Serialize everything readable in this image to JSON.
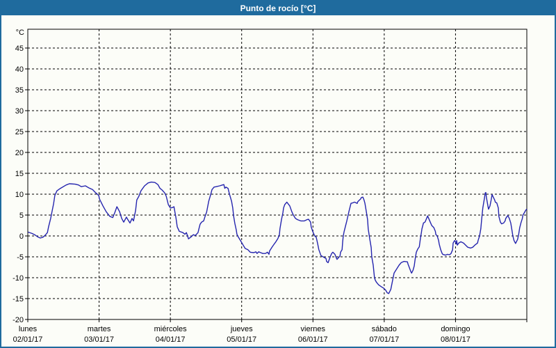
{
  "title": "Punto de rocío [°C]",
  "colors": {
    "titlebar": "#1f6b9e",
    "border": "#1f6b9e",
    "background": "#fcfdf8",
    "grid": "#000000",
    "frame": "#000000",
    "line": "#2424ae",
    "title_text": "#ffffff",
    "axis_text": "#000000"
  },
  "chart_data": {
    "type": "line",
    "title": "Punto de rocío [°C]",
    "y_unit_label": "°C",
    "ylabel": "",
    "xlabel": "",
    "ylim": [
      -20,
      49.5
    ],
    "y_tick_step": 5,
    "y_ticks": [
      45,
      40,
      35,
      30,
      25,
      20,
      15,
      10,
      5,
      0,
      -5,
      -10,
      -15,
      -20
    ],
    "grid": "dashed",
    "legend": "none",
    "x_range_hours": [
      0,
      168
    ],
    "hours_per_day": 24,
    "x_days": [
      {
        "name": "lunes",
        "date": "02/01/17"
      },
      {
        "name": "martes",
        "date": "03/01/17"
      },
      {
        "name": "miércoles",
        "date": "04/01/17"
      },
      {
        "name": "jueves",
        "date": "05/01/17"
      },
      {
        "name": "viernes",
        "date": "06/01/17"
      },
      {
        "name": "sábado",
        "date": "07/01/17"
      },
      {
        "name": "domingo",
        "date": "08/01/17"
      }
    ],
    "series": [
      {
        "name": "Punto de rocío",
        "color": "#2424ae",
        "points": [
          [
            0.2,
            0.9
          ],
          [
            1.4,
            0.6
          ],
          [
            2.3,
            0.3
          ],
          [
            3.3,
            -0.2
          ],
          [
            4.2,
            -0.5
          ],
          [
            5.1,
            -0.3
          ],
          [
            5.9,
            0.2
          ],
          [
            6.6,
            0.8
          ],
          [
            7.0,
            2.2
          ],
          [
            7.7,
            4.2
          ],
          [
            8.7,
            7.8
          ],
          [
            9.1,
            9.7
          ],
          [
            9.8,
            10.8
          ],
          [
            11.0,
            11.4
          ],
          [
            12.9,
            12.2
          ],
          [
            14.0,
            12.5
          ],
          [
            15.9,
            12.4
          ],
          [
            17.1,
            12.2
          ],
          [
            18.0,
            11.8
          ],
          [
            19.4,
            12.0
          ],
          [
            20.6,
            11.5
          ],
          [
            21.8,
            11.1
          ],
          [
            22.9,
            10.3
          ],
          [
            23.9,
            9.7
          ],
          [
            24.1,
            8.9
          ],
          [
            25.3,
            7.2
          ],
          [
            26.4,
            5.8
          ],
          [
            27.6,
            4.7
          ],
          [
            28.6,
            4.4
          ],
          [
            29.3,
            5.6
          ],
          [
            30.0,
            7.0
          ],
          [
            30.9,
            5.8
          ],
          [
            31.6,
            4.2
          ],
          [
            32.3,
            3.3
          ],
          [
            33.2,
            4.5
          ],
          [
            33.7,
            3.9
          ],
          [
            34.4,
            3.1
          ],
          [
            35.1,
            4.2
          ],
          [
            35.6,
            3.6
          ],
          [
            36.3,
            6.1
          ],
          [
            36.7,
            8.6
          ],
          [
            37.4,
            9.5
          ],
          [
            38.1,
            10.8
          ],
          [
            39.3,
            12.0
          ],
          [
            40.5,
            12.7
          ],
          [
            41.6,
            12.9
          ],
          [
            42.8,
            12.8
          ],
          [
            43.8,
            12.3
          ],
          [
            44.5,
            11.4
          ],
          [
            45.2,
            11.0
          ],
          [
            46.1,
            10.3
          ],
          [
            46.6,
            9.5
          ],
          [
            47.3,
            7.5
          ],
          [
            48.0,
            6.7
          ],
          [
            48.7,
            6.8
          ],
          [
            49.2,
            7.0
          ],
          [
            49.9,
            4.2
          ],
          [
            50.3,
            2.2
          ],
          [
            51.0,
            1.1
          ],
          [
            52.2,
            0.8
          ],
          [
            52.9,
            0.4
          ],
          [
            53.4,
            0.8
          ],
          [
            53.8,
            0.0
          ],
          [
            54.1,
            -0.7
          ],
          [
            55.0,
            -0.2
          ],
          [
            55.7,
            0.3
          ],
          [
            56.4,
            0.1
          ],
          [
            57.3,
            0.8
          ],
          [
            57.6,
            1.7
          ],
          [
            58.0,
            2.8
          ],
          [
            58.5,
            3.3
          ],
          [
            59.2,
            3.6
          ],
          [
            59.7,
            4.7
          ],
          [
            60.2,
            5.7
          ],
          [
            60.9,
            8.3
          ],
          [
            61.6,
            10.0
          ],
          [
            62.0,
            11.1
          ],
          [
            62.7,
            11.7
          ],
          [
            63.4,
            11.8
          ],
          [
            64.6,
            12.0
          ],
          [
            65.5,
            12.2
          ],
          [
            66.0,
            12.3
          ],
          [
            66.3,
            11.4
          ],
          [
            66.7,
            11.7
          ],
          [
            67.4,
            11.4
          ],
          [
            67.9,
            10.0
          ],
          [
            68.6,
            8.3
          ],
          [
            69.0,
            6.7
          ],
          [
            69.3,
            4.7
          ],
          [
            69.7,
            3.0
          ],
          [
            70.2,
            1.4
          ],
          [
            70.4,
            0.4
          ],
          [
            70.9,
            -0.3
          ],
          [
            71.6,
            -1.1
          ],
          [
            72.5,
            -2.2
          ],
          [
            73.2,
            -3.0
          ],
          [
            74.1,
            -3.3
          ],
          [
            74.9,
            -3.9
          ],
          [
            76.1,
            -4.0
          ],
          [
            76.8,
            -3.8
          ],
          [
            77.2,
            -4.2
          ],
          [
            77.7,
            -3.8
          ],
          [
            78.4,
            -4.0
          ],
          [
            79.1,
            -4.2
          ],
          [
            80.0,
            -4.2
          ],
          [
            80.7,
            -3.9
          ],
          [
            81.2,
            -4.4
          ],
          [
            81.4,
            -3.6
          ],
          [
            82.3,
            -2.6
          ],
          [
            83.0,
            -1.9
          ],
          [
            83.5,
            -1.4
          ],
          [
            84.2,
            -0.6
          ],
          [
            84.7,
            0.3
          ],
          [
            84.9,
            1.7
          ],
          [
            85.4,
            3.9
          ],
          [
            85.9,
            5.6
          ],
          [
            86.1,
            6.7
          ],
          [
            86.5,
            7.5
          ],
          [
            87.2,
            8.1
          ],
          [
            88.2,
            7.2
          ],
          [
            88.9,
            5.8
          ],
          [
            89.4,
            5.0
          ],
          [
            90.1,
            4.2
          ],
          [
            90.8,
            3.9
          ],
          [
            91.9,
            3.6
          ],
          [
            93.1,
            3.6
          ],
          [
            94.0,
            3.9
          ],
          [
            94.5,
            4.0
          ],
          [
            95.2,
            3.3
          ],
          [
            95.4,
            2.2
          ],
          [
            95.9,
            1.1
          ],
          [
            96.4,
            0.3
          ],
          [
            96.6,
            0.0
          ],
          [
            97.1,
            -0.3
          ],
          [
            97.6,
            -1.9
          ],
          [
            98.0,
            -3.3
          ],
          [
            98.7,
            -4.7
          ],
          [
            99.4,
            -5.0
          ],
          [
            100.4,
            -5.4
          ],
          [
            100.6,
            -6.1
          ],
          [
            101.1,
            -6.4
          ],
          [
            101.8,
            -5.0
          ],
          [
            102.3,
            -4.2
          ],
          [
            102.7,
            -3.9
          ],
          [
            103.4,
            -4.4
          ],
          [
            103.9,
            -5.3
          ],
          [
            104.1,
            -5.6
          ],
          [
            105.1,
            -4.8
          ],
          [
            105.3,
            -3.9
          ],
          [
            105.8,
            -3.3
          ],
          [
            106.0,
            -1.5
          ],
          [
            106.2,
            0.0
          ],
          [
            106.5,
            1.1
          ],
          [
            107.4,
            3.6
          ],
          [
            108.1,
            5.8
          ],
          [
            108.6,
            7.2
          ],
          [
            108.8,
            7.8
          ],
          [
            109.3,
            7.9
          ],
          [
            110.0,
            8.1
          ],
          [
            110.9,
            7.8
          ],
          [
            111.1,
            8.2
          ],
          [
            112.1,
            8.9
          ],
          [
            112.3,
            9.2
          ],
          [
            112.8,
            9.3
          ],
          [
            113.2,
            8.6
          ],
          [
            113.5,
            7.8
          ],
          [
            113.9,
            6.1
          ],
          [
            114.4,
            3.9
          ],
          [
            114.6,
            1.7
          ],
          [
            115.1,
            -0.6
          ],
          [
            115.6,
            -2.8
          ],
          [
            115.8,
            -5.0
          ],
          [
            116.3,
            -7.0
          ],
          [
            116.7,
            -10.0
          ],
          [
            117.0,
            -10.6
          ],
          [
            117.4,
            -11.1
          ],
          [
            118.1,
            -11.7
          ],
          [
            119.1,
            -12.2
          ],
          [
            119.8,
            -12.5
          ],
          [
            120.5,
            -13.0
          ],
          [
            121.0,
            -13.6
          ],
          [
            121.5,
            -13.8
          ],
          [
            122.2,
            -12.8
          ],
          [
            123.3,
            -8.9
          ],
          [
            125.0,
            -7.0
          ],
          [
            125.7,
            -6.4
          ],
          [
            126.6,
            -6.1
          ],
          [
            127.8,
            -6.2
          ],
          [
            128.0,
            -6.7
          ],
          [
            129.0,
            -8.6
          ],
          [
            129.2,
            -8.9
          ],
          [
            129.7,
            -8.2
          ],
          [
            130.1,
            -7.2
          ],
          [
            130.4,
            -5.6
          ],
          [
            130.8,
            -3.9
          ],
          [
            131.3,
            -3.1
          ],
          [
            131.8,
            -2.6
          ],
          [
            132.2,
            -0.5
          ],
          [
            132.5,
            0.8
          ],
          [
            132.7,
            1.7
          ],
          [
            133.2,
            3.1
          ],
          [
            133.7,
            3.3
          ],
          [
            133.9,
            3.6
          ],
          [
            134.6,
            4.8
          ],
          [
            135.5,
            3.3
          ],
          [
            136.0,
            2.5
          ],
          [
            136.7,
            2.0
          ],
          [
            137.2,
            1.1
          ],
          [
            137.4,
            0.3
          ],
          [
            137.8,
            0.1
          ],
          [
            138.3,
            -1.1
          ],
          [
            138.5,
            -1.9
          ],
          [
            139.0,
            -3.3
          ],
          [
            139.5,
            -4.2
          ],
          [
            139.7,
            -4.4
          ],
          [
            140.6,
            -4.6
          ],
          [
            141.3,
            -4.4
          ],
          [
            142.0,
            -4.5
          ],
          [
            142.5,
            -4.2
          ],
          [
            143.0,
            -3.3
          ],
          [
            143.2,
            -1.7
          ],
          [
            143.7,
            -1.1
          ],
          [
            144.0,
            -1.4
          ],
          [
            144.2,
            -1.9
          ],
          [
            144.4,
            -1.1
          ],
          [
            144.6,
            -2.2
          ],
          [
            145.1,
            -1.7
          ],
          [
            145.8,
            -1.4
          ],
          [
            146.7,
            -1.7
          ],
          [
            147.4,
            -2.2
          ],
          [
            148.1,
            -2.7
          ],
          [
            149.1,
            -2.9
          ],
          [
            149.8,
            -2.7
          ],
          [
            150.5,
            -2.2
          ],
          [
            151.4,
            -1.7
          ],
          [
            151.6,
            -1.1
          ],
          [
            152.1,
            0.0
          ],
          [
            152.5,
            1.7
          ],
          [
            152.8,
            3.9
          ],
          [
            153.2,
            6.7
          ],
          [
            153.7,
            8.9
          ],
          [
            154.0,
            10.3
          ],
          [
            154.2,
            10.4
          ],
          [
            154.4,
            9.2
          ],
          [
            154.9,
            7.2
          ],
          [
            155.1,
            6.4
          ],
          [
            155.6,
            7.2
          ],
          [
            156.0,
            8.6
          ],
          [
            156.3,
            9.9
          ],
          [
            157.2,
            8.6
          ],
          [
            157.4,
            8.1
          ],
          [
            157.9,
            7.9
          ],
          [
            158.4,
            6.7
          ],
          [
            158.6,
            4.7
          ],
          [
            159.1,
            3.3
          ],
          [
            159.5,
            2.9
          ],
          [
            160.2,
            3.1
          ],
          [
            160.7,
            3.6
          ],
          [
            160.9,
            4.2
          ],
          [
            161.4,
            4.7
          ],
          [
            161.6,
            4.9
          ],
          [
            162.1,
            4.2
          ],
          [
            162.6,
            3.1
          ],
          [
            163.0,
            1.4
          ],
          [
            163.3,
            0.0
          ],
          [
            163.7,
            -1.1
          ],
          [
            164.2,
            -1.8
          ],
          [
            164.9,
            -0.8
          ],
          [
            165.3,
            0.6
          ],
          [
            165.6,
            1.9
          ],
          [
            166.0,
            3.1
          ],
          [
            166.5,
            4.2
          ],
          [
            166.7,
            5.0
          ],
          [
            167.2,
            5.6
          ],
          [
            167.6,
            6.1
          ],
          [
            167.9,
            6.4
          ]
        ]
      }
    ]
  }
}
